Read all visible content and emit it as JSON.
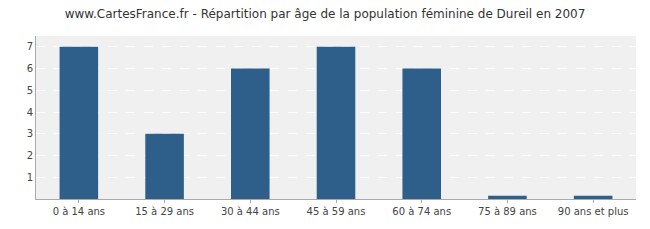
{
  "chart_data": {
    "type": "bar",
    "title": "www.CartesFrance.fr - Répartition par âge de la population féminine de Dureil en 2007",
    "categories": [
      "0 à 14 ans",
      "15 à 29 ans",
      "30 à 44 ans",
      "45 à 59 ans",
      "60 à 74 ans",
      "75 à 89 ans",
      "90 ans et plus"
    ],
    "values": [
      7,
      3,
      6,
      7,
      6,
      0.15,
      0.15
    ],
    "color": "#2d5f8a",
    "ylim": [
      0,
      7.5
    ],
    "yticks": [
      1,
      2,
      3,
      4,
      5,
      6,
      7
    ],
    "grid": true
  }
}
